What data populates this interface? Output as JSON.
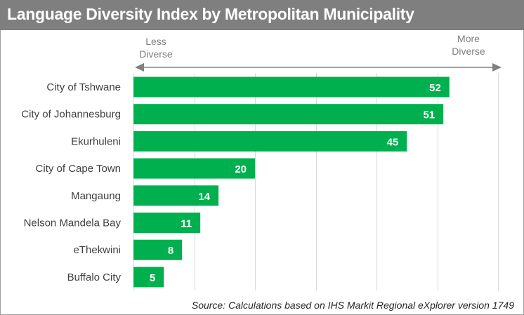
{
  "title": "Language Diversity Index by Metropolitan Municipality",
  "source": "Source: Calculations based on IHS Markit Regional eXplorer version 1749",
  "annotations": {
    "left_line1": "Less",
    "left_line2": "Diverse",
    "right_line1": "More",
    "right_line2": "Diverse"
  },
  "colors": {
    "bar": "#00b04f",
    "title_bg": "#7f7f7f",
    "grid": "#d9d9d9",
    "arrow": "#808080"
  },
  "chart_data": {
    "type": "bar",
    "orientation": "horizontal",
    "categories": [
      "City of Tshwane",
      "City of Johannesburg",
      "Ekurhuleni",
      "City of Cape Town",
      "Mangaung",
      "Nelson Mandela Bay",
      "eThekwini",
      "Buffalo City"
    ],
    "values": [
      52,
      51,
      45,
      20,
      14,
      11,
      8,
      5
    ],
    "xlim": [
      0,
      60
    ],
    "grid": true,
    "data_labels": true
  }
}
